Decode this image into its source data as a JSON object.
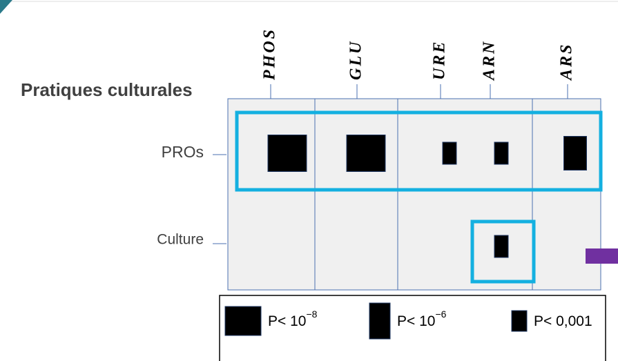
{
  "title": "Pratiques culturales",
  "columns": [
    "PHOS",
    "GLU",
    "URE",
    "ARN",
    "ARS"
  ],
  "rows": [
    "PROs",
    "Culture"
  ],
  "cells": [
    {
      "row": 0,
      "column": 0,
      "level": 0
    },
    {
      "row": 0,
      "column": 1,
      "level": 0
    },
    {
      "row": 0,
      "column": 2,
      "level": 2
    },
    {
      "row": 0,
      "column": 3,
      "level": 2
    },
    {
      "row": 0,
      "column": 4,
      "level": 1
    },
    {
      "row": 1,
      "column": 3,
      "level": 2
    }
  ],
  "legend": [
    {
      "base": "P< 10",
      "exponent": "−8"
    },
    {
      "base": "P< 10",
      "exponent": "−6"
    },
    {
      "base": "P< 0,001"
    }
  ]
}
